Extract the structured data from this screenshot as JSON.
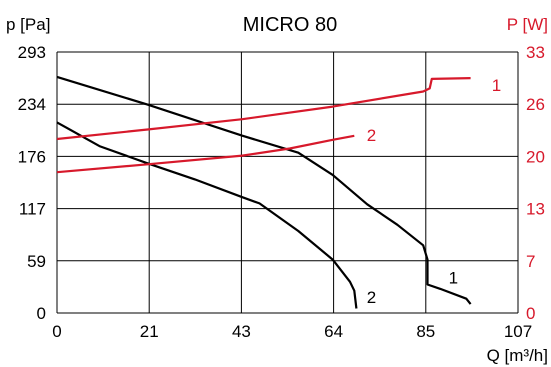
{
  "chart_data": {
    "type": "line",
    "title": "MICRO 80",
    "xlabel": "Q [m³/h]",
    "ylabel_left": "p [Pa]",
    "ylabel_right": "P [W]",
    "xlim": [
      0,
      107
    ],
    "ylim_left": [
      0,
      293
    ],
    "ylim_right": [
      0,
      33
    ],
    "x_ticks": [
      "0",
      "21",
      "43",
      "64",
      "85",
      "107"
    ],
    "y_left_ticks": [
      "0",
      "59",
      "117",
      "176",
      "234",
      "293"
    ],
    "y_right_ticks": [
      "0",
      "7",
      "13",
      "20",
      "26",
      "33"
    ],
    "grid": true,
    "colors": {
      "pressure": "#000000",
      "power": "#d7192b",
      "grid": "#000000"
    },
    "series": [
      {
        "name": "1",
        "kind": "pressure",
        "axis": "left",
        "points": [
          [
            0,
            265
          ],
          [
            21,
            234
          ],
          [
            43,
            199
          ],
          [
            56,
            180
          ],
          [
            64,
            155
          ],
          [
            72,
            122
          ],
          [
            79,
            99
          ],
          [
            85,
            76
          ],
          [
            86,
            60
          ],
          [
            86,
            32
          ],
          [
            89,
            27
          ],
          [
            95,
            16
          ],
          [
            96,
            10
          ]
        ]
      },
      {
        "name": "2",
        "kind": "pressure",
        "axis": "left",
        "points": [
          [
            0,
            214
          ],
          [
            10,
            187
          ],
          [
            21,
            168
          ],
          [
            32,
            150
          ],
          [
            43,
            130
          ],
          [
            47,
            123
          ],
          [
            56,
            92
          ],
          [
            64,
            60
          ],
          [
            68,
            35
          ],
          [
            69,
            25
          ],
          [
            69.5,
            5
          ]
        ]
      },
      {
        "name": "1",
        "kind": "power",
        "axis": "right",
        "points": [
          [
            0,
            22
          ],
          [
            21,
            23.2
          ],
          [
            43,
            24.5
          ],
          [
            64,
            26.1
          ],
          [
            85,
            28.0
          ],
          [
            86.5,
            28.4
          ],
          [
            87,
            29.6
          ],
          [
            96,
            29.7
          ]
        ]
      },
      {
        "name": "2",
        "kind": "power",
        "axis": "right",
        "points": [
          [
            0,
            17.8
          ],
          [
            21,
            18.8
          ],
          [
            43,
            19.9
          ],
          [
            54,
            20.8
          ],
          [
            64,
            21.9
          ],
          [
            69,
            22.4
          ]
        ]
      }
    ],
    "curve_labels": [
      {
        "text": "1",
        "at": [
          102,
          28.8
        ],
        "axis": "right",
        "color": "#d7192b"
      },
      {
        "text": "2",
        "at": [
          73,
          22.5
        ],
        "axis": "right",
        "color": "#d7192b"
      },
      {
        "text": "1",
        "at": [
          92,
          40
        ],
        "axis": "left",
        "color": "#000000"
      },
      {
        "text": "2",
        "at": [
          73,
          18
        ],
        "axis": "left",
        "color": "#000000"
      }
    ]
  }
}
